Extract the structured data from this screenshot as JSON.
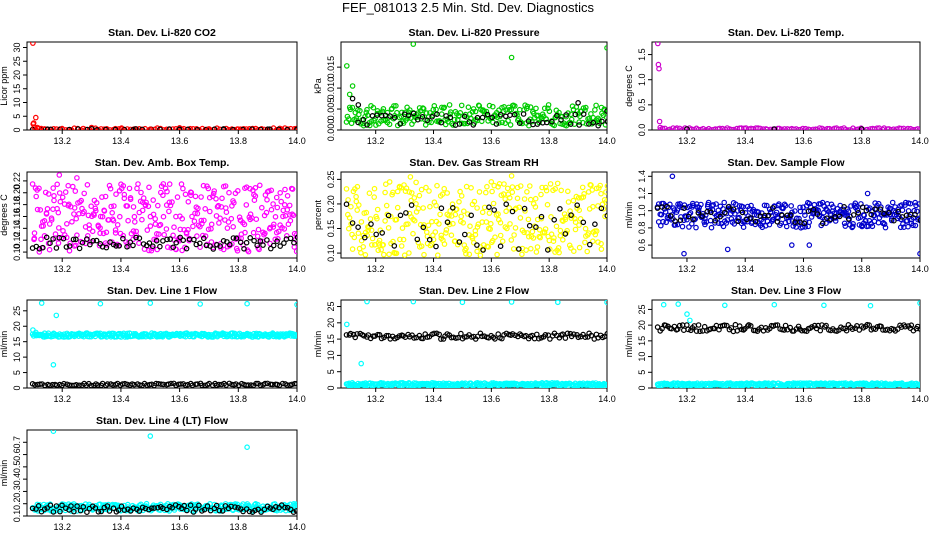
{
  "figure": {
    "title": "FEF_081013  2.5 Min. Std. Dev. Diagnostics"
  },
  "chart_data": [
    {
      "type": "scatter",
      "title": "Stan. Dev. Li-820 CO2",
      "ylabel": "Licor ppm",
      "xlabel": "",
      "xlim": [
        13.08,
        14.0
      ],
      "ylim": [
        0,
        32
      ],
      "xticks": [
        "13.2",
        "13.4",
        "13.6",
        "13.8",
        "14.0"
      ],
      "yticks": [
        "0",
        "5",
        "10",
        "15",
        "20",
        "25",
        "30"
      ],
      "colors": {
        "primary": "#ff0000",
        "secondary": "#000000"
      },
      "series": [
        {
          "color": "#ff0000",
          "x": [
            13.1,
            13.101,
            13.103,
            13.105,
            13.11,
            13.115,
            13.12,
            13.14,
            13.2,
            13.3,
            13.4,
            13.5,
            13.6,
            13.7,
            13.8,
            13.9,
            14.0
          ],
          "y": [
            31.6,
            2.2,
            2.5,
            1.1,
            4.5,
            0.9,
            0.5,
            0.4,
            0.3,
            0.9,
            0.4,
            0.3,
            0.8,
            0.4,
            0.3,
            0.2,
            0.3
          ]
        },
        {
          "color": "#000000",
          "x": [
            13.15,
            13.3,
            13.45,
            13.6,
            13.75,
            13.9,
            14.0
          ],
          "y": [
            0.3,
            0.4,
            0.4,
            0.3,
            0.4,
            0.3,
            0.3
          ]
        }
      ],
      "band": {
        "color": "#ff0000",
        "x_start": 13.1,
        "x_end": 14.0,
        "y_low": 0.0,
        "y_high": 0.7,
        "count": 90,
        "seed": 11
      },
      "band2": {
        "color": "#000000",
        "x_start": 13.1,
        "x_end": 14.0,
        "y_low": 0.05,
        "y_high": 0.35,
        "count": 30,
        "seed": 12
      }
    },
    {
      "type": "scatter",
      "title": "Stan. Dev. Li-820 Pressure",
      "ylabel": "kPa",
      "xlabel": "",
      "xlim": [
        13.08,
        14.0
      ],
      "ylim": [
        0,
        0.021
      ],
      "xticks": [
        "13.2",
        "13.4",
        "13.6",
        "13.8",
        "14.0"
      ],
      "yticks": [
        "0.000",
        "0.005",
        "0.010",
        "0.015"
      ],
      "colors": {
        "primary": "#00cc00",
        "secondary": "#000000"
      },
      "series": [
        {
          "color": "#00cc00",
          "x": [
            13.1,
            13.33,
            13.67,
            14.0,
            13.12,
            13.11
          ],
          "y": [
            0.0153,
            0.0205,
            0.0173,
            0.0196,
            0.0105,
            0.0085
          ]
        },
        {
          "color": "#000000",
          "x": [
            13.12,
            13.14,
            13.9,
            14.0
          ],
          "y": [
            0.0075,
            0.006,
            0.0065,
            0.0045
          ]
        }
      ],
      "band": {
        "color": "#00cc00",
        "x_start": 13.1,
        "x_end": 14.0,
        "y_low": 0.001,
        "y_high": 0.006,
        "count": 260,
        "seed": 21
      },
      "band2": {
        "color": "#000000",
        "x_start": 13.14,
        "x_end": 14.0,
        "y_low": 0.001,
        "y_high": 0.004,
        "count": 55,
        "seed": 22
      }
    },
    {
      "type": "scatter",
      "title": "Stan. Dev. Li-820 Temp.",
      "ylabel": "degrees C",
      "xlabel": "",
      "xlim": [
        13.08,
        14.0
      ],
      "ylim": [
        0,
        1.75
      ],
      "xticks": [
        "13.2",
        "13.4",
        "13.6",
        "13.8",
        "14.0"
      ],
      "yticks": [
        "0.0",
        "0.5",
        "1.0",
        "1.5"
      ],
      "colors": {
        "primary": "#cc00cc",
        "secondary": "#000000"
      },
      "series": [
        {
          "color": "#cc00cc",
          "x": [
            13.1,
            13.102,
            13.104,
            13.106,
            13.108
          ],
          "y": [
            1.72,
            1.3,
            1.22,
            0.17,
            0.05
          ]
        },
        {
          "color": "#000000",
          "x": [
            13.2,
            13.5,
            13.8
          ],
          "y": [
            0.02,
            0.02,
            0.02
          ]
        }
      ],
      "band": {
        "color": "#cc00cc",
        "x_start": 13.11,
        "x_end": 14.0,
        "y_low": 0.0,
        "y_high": 0.04,
        "count": 110,
        "seed": 31
      },
      "band2": null
    },
    {
      "type": "scatter",
      "title": "Stan. Dev. Amb. Box Temp.",
      "ylabel": "degrees C",
      "xlabel": "",
      "xlim": [
        13.08,
        14.0
      ],
      "ylim": [
        0.09,
        0.235
      ],
      "xticks": [
        "13.2",
        "13.4",
        "13.6",
        "13.8",
        "14.0"
      ],
      "yticks": [
        "0.10",
        "0.12",
        "0.14",
        "0.16",
        "0.18",
        "0.20",
        "0.22"
      ],
      "colors": {
        "primary": "#ff00ff",
        "secondary": "#000000"
      },
      "series": [
        {
          "color": "#ff00ff",
          "x": [
            13.19,
            13.25
          ],
          "y": [
            0.23,
            0.225
          ]
        }
      ],
      "band": {
        "color": "#ff00ff",
        "x_start": 13.1,
        "x_end": 14.0,
        "y_low": 0.1,
        "y_high": 0.215,
        "count": 380,
        "seed": 41
      },
      "band2": {
        "color": "#000000",
        "x_start": 13.1,
        "x_end": 14.0,
        "y_low": 0.105,
        "y_high": 0.125,
        "count": 80,
        "seed": 42
      }
    },
    {
      "type": "scatter",
      "title": "Stan. Dev. Gas Stream RH",
      "ylabel": "percent",
      "xlabel": "",
      "xlim": [
        13.08,
        14.0
      ],
      "ylim": [
        0.09,
        0.265
      ],
      "xticks": [
        "13.2",
        "13.4",
        "13.6",
        "13.8",
        "14.0"
      ],
      "yticks": [
        "0.10",
        "0.15",
        "0.20",
        "0.25"
      ],
      "colors": {
        "primary": "#ffff00",
        "secondary": "#000000"
      },
      "series": [
        {
          "color": "#ffff00",
          "x": [
            13.32,
            13.67,
            13.6
          ],
          "y": [
            0.255,
            0.257,
            0.245
          ]
        }
      ],
      "band": {
        "color": "#ffff00",
        "x_start": 13.1,
        "x_end": 14.0,
        "y_low": 0.095,
        "y_high": 0.245,
        "count": 360,
        "seed": 51
      },
      "band2": {
        "color": "#000000",
        "x_start": 13.1,
        "x_end": 14.0,
        "y_low": 0.105,
        "y_high": 0.2,
        "count": 45,
        "seed": 52
      }
    },
    {
      "type": "scatter",
      "title": "Stan. Dev. Sample Flow",
      "ylabel": "ml/min",
      "xlabel": "",
      "xlim": [
        13.08,
        14.0
      ],
      "ylim": [
        0.45,
        1.45
      ],
      "xticks": [
        "13.2",
        "13.4",
        "13.6",
        "13.8",
        "14.0"
      ],
      "yticks": [
        "0.6",
        "0.8",
        "1.0",
        "1.2",
        "1.4"
      ],
      "colors": {
        "primary": "#0000cc",
        "secondary": "#000000"
      },
      "series": [
        {
          "color": "#0000cc",
          "x": [
            13.15,
            13.19,
            13.34,
            13.56,
            13.62,
            14.0,
            13.82
          ],
          "y": [
            1.4,
            0.5,
            0.55,
            0.6,
            0.6,
            0.5,
            1.2
          ]
        }
      ],
      "band": {
        "color": "#0000cc",
        "x_start": 13.1,
        "x_end": 14.0,
        "y_low": 0.8,
        "y_high": 1.1,
        "count": 360,
        "seed": 61
      },
      "band2": {
        "color": "#000000",
        "x_start": 13.1,
        "x_end": 14.0,
        "y_low": 0.85,
        "y_high": 1.05,
        "count": 60,
        "seed": 62
      }
    },
    {
      "type": "scatter",
      "title": "Stan. Dev. Line 1 Flow",
      "ylabel": "ml/min",
      "xlabel": "",
      "xlim": [
        13.08,
        14.0
      ],
      "ylim": [
        0,
        28.5
      ],
      "xticks": [
        "13.2",
        "13.4",
        "13.6",
        "13.8",
        "14.0"
      ],
      "yticks": [
        "0",
        "5",
        "10",
        "15",
        "20",
        "25"
      ],
      "colors": {
        "primary": "#00ffff",
        "secondary": "#000000"
      },
      "series": [
        {
          "color": "#00ffff",
          "x": [
            13.13,
            13.17,
            13.33,
            13.5,
            13.67,
            13.83,
            14.0,
            13.18,
            13.1,
            13.11
          ],
          "y": [
            27.5,
            7.5,
            27.3,
            27.5,
            27.2,
            27.3,
            27.0,
            23.5,
            18.8,
            18.0
          ]
        }
      ],
      "band": {
        "color": "#00ffff",
        "x_start": 13.1,
        "x_end": 14.0,
        "y_low": 16.5,
        "y_high": 17.8,
        "count": 330,
        "seed": 71
      },
      "band2": {
        "color": "#000000",
        "x_start": 13.1,
        "x_end": 14.0,
        "y_low": 0.8,
        "y_high": 1.5,
        "count": 110,
        "seed": 72
      }
    },
    {
      "type": "scatter",
      "title": "Stan. Dev. Line 2 Flow",
      "ylabel": "ml/min",
      "xlabel": "",
      "xlim": [
        13.08,
        14.0
      ],
      "ylim": [
        0,
        27
      ],
      "xticks": [
        "13.2",
        "13.4",
        "13.6",
        "13.8",
        "14.0"
      ],
      "yticks": [
        "0",
        "5",
        "10",
        "15",
        "20",
        "25"
      ],
      "colors": {
        "primary": "#00ffff",
        "secondary": "#000000"
      },
      "series": [
        {
          "color": "#00ffff",
          "x": [
            13.17,
            13.33,
            13.5,
            13.67,
            13.83,
            14.0,
            13.15,
            13.1
          ],
          "y": [
            26.5,
            26.5,
            26.3,
            26.4,
            26.3,
            26.3,
            7.5,
            19.5
          ]
        }
      ],
      "band": {
        "color": "#00ffff",
        "x_start": 13.1,
        "x_end": 14.0,
        "y_low": 0.6,
        "y_high": 1.6,
        "count": 300,
        "seed": 81
      },
      "band2": {
        "color": "#000000",
        "x_start": 13.1,
        "x_end": 14.0,
        "y_low": 15.0,
        "y_high": 16.8,
        "count": 120,
        "seed": 82
      }
    },
    {
      "type": "scatter",
      "title": "Stan. Dev. Line 3 Flow",
      "ylabel": "ml/min",
      "xlabel": "",
      "xlim": [
        13.08,
        14.0
      ],
      "ylim": [
        0,
        28
      ],
      "xticks": [
        "13.2",
        "13.4",
        "13.6",
        "13.8",
        "14.0"
      ],
      "yticks": [
        "0",
        "5",
        "10",
        "15",
        "20",
        "25"
      ],
      "colors": {
        "primary": "#00ffff",
        "secondary": "#000000"
      },
      "series": [
        {
          "color": "#00ffff",
          "x": [
            13.12,
            13.17,
            13.33,
            13.5,
            13.67,
            13.83,
            14.0,
            13.2,
            13.21
          ],
          "y": [
            26.5,
            26.7,
            26.3,
            26.5,
            26.3,
            26.2,
            27.0,
            23.5,
            21.5
          ]
        }
      ],
      "band": {
        "color": "#00ffff",
        "x_start": 13.1,
        "x_end": 14.0,
        "y_low": 0.7,
        "y_high": 1.6,
        "count": 300,
        "seed": 91
      },
      "band2": {
        "color": "#000000",
        "x_start": 13.1,
        "x_end": 14.0,
        "y_low": 18.0,
        "y_high": 20.2,
        "count": 130,
        "seed": 92
      }
    },
    {
      "type": "scatter",
      "title": "Stan. Dev. Line 4 (LT) Flow",
      "ylabel": "ml/min",
      "xlabel": "",
      "xlim": [
        13.08,
        14.0
      ],
      "ylim": [
        0.1,
        0.8
      ],
      "xticks": [
        "13.2",
        "13.4",
        "13.6",
        "13.8",
        "14.0"
      ],
      "yticks": [
        "0.1",
        "0.2",
        "0.3",
        "0.4",
        "0.5",
        "0.6",
        "0.7"
      ],
      "colors": {
        "primary": "#00ffff",
        "secondary": "#000000"
      },
      "series": [
        {
          "color": "#00ffff",
          "x": [
            13.17,
            13.5,
            13.83
          ],
          "y": [
            0.79,
            0.75,
            0.66
          ]
        }
      ],
      "band": {
        "color": "#00ffff",
        "x_start": 13.1,
        "x_end": 14.0,
        "y_low": 0.14,
        "y_high": 0.2,
        "count": 300,
        "seed": 101
      },
      "band2": {
        "color": "#000000",
        "x_start": 13.1,
        "x_end": 14.0,
        "y_low": 0.13,
        "y_high": 0.19,
        "count": 90,
        "seed": 102
      }
    }
  ]
}
